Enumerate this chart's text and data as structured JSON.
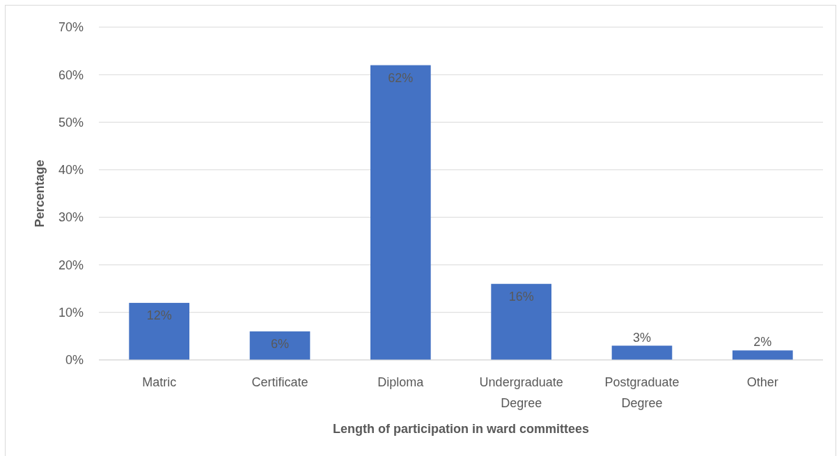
{
  "chart_data": {
    "type": "bar",
    "categories": [
      "Matric",
      "Certificate",
      "Diploma",
      "Undergraduate Degree",
      "Postgraduate Degree",
      "Other"
    ],
    "values": [
      12,
      6,
      62,
      16,
      3,
      2
    ],
    "color": "#4472c4",
    "xlabel": "Length of participation in ward committees",
    "ylabel": "Percentage",
    "ylim": [
      0,
      70
    ],
    "yticks": [
      {
        "value": 0,
        "label": "0%"
      },
      {
        "value": 10,
        "label": "10%"
      },
      {
        "value": 20,
        "label": "20%"
      },
      {
        "value": 30,
        "label": "30%"
      },
      {
        "value": 40,
        "label": "40%"
      },
      {
        "value": 50,
        "label": "50%"
      },
      {
        "value": 60,
        "label": "60%"
      },
      {
        "value": 70,
        "label": "70%"
      }
    ],
    "value_labels": [
      "12%",
      "6%",
      "62%",
      "16%",
      "3%",
      "2%"
    ],
    "grid": "y"
  }
}
